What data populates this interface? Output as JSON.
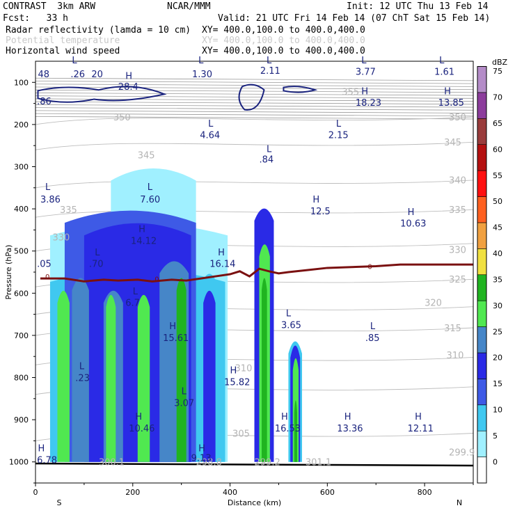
{
  "header": {
    "model": "CONTRAST  3km ARW",
    "org": "NCAR/MMM",
    "init": "Init: 12 UTC Thu 13 Feb 14",
    "fcst": "Fcst:   33 h",
    "valid": "Valid: 21 UTC Fri 14 Feb 14 (07 ChT Sat 15 Feb 14)",
    "fields": [
      {
        "name": "Radar reflectivity (lamda = 10 cm)",
        "xy": "XY= 400.0,100.0 to 400.0,400.0",
        "faded": false
      },
      {
        "name": "Potential temperature",
        "xy": "XY= 400.0,100.0 to 400.0,400.0",
        "faded": true
      },
      {
        "name": "Horizontal wind speed",
        "xy": "XY= 400.0,100.0 to 400.0,400.0",
        "faded": false
      }
    ]
  },
  "chart_data": {
    "type": "cross-section",
    "title": "Radar reflectivity, potential temperature and horizontal wind speed cross-section",
    "xlabel": "Distance (km)",
    "ylabel": "Pressure (hPa)",
    "xlim": [
      0,
      900
    ],
    "ylim": [
      1050,
      50
    ],
    "x_ticks": [
      "0",
      "200",
      "400",
      "600",
      "800"
    ],
    "x_tick_values": [
      0,
      200,
      400,
      600,
      800
    ],
    "y_ticks": [
      "100",
      "200",
      "300",
      "400",
      "500",
      "600",
      "700",
      "800",
      "900",
      "1000"
    ],
    "y_tick_values": [
      100,
      200,
      300,
      400,
      500,
      600,
      700,
      800,
      900,
      1000
    ],
    "x_end_labels": {
      "left": "S",
      "right": "N"
    },
    "colorbar": {
      "unit": "dBZ",
      "levels": [
        "0",
        "5",
        "10",
        "15",
        "20",
        "25",
        "30",
        "35",
        "40",
        "45",
        "50",
        "55",
        "60",
        "65",
        "70",
        "75"
      ],
      "colors": [
        "#ffffff",
        "#a0f0ff",
        "#40c8f0",
        "#3e5ae6",
        "#2a2ae6",
        "#4686c8",
        "#50e850",
        "#20b420",
        "#f0e040",
        "#f0a040",
        "#ff6020",
        "#ff1010",
        "#b41010",
        "#9a3c3c",
        "#8c3c9c",
        "#b48cc8"
      ]
    },
    "theta_labels": [
      {
        "text": "355",
        "x": 630,
        "p": 130
      },
      {
        "text": "350",
        "x": 160,
        "p": 190
      },
      {
        "text": "350",
        "x": 850,
        "p": 190
      },
      {
        "text": "345",
        "x": 210,
        "p": 280
      },
      {
        "text": "345",
        "x": 840,
        "p": 250
      },
      {
        "text": "340",
        "x": 850,
        "p": 340
      },
      {
        "text": "335",
        "x": 50,
        "p": 410
      },
      {
        "text": "335",
        "x": 850,
        "p": 410
      },
      {
        "text": "330",
        "x": 35,
        "p": 475
      },
      {
        "text": "330",
        "x": 850,
        "p": 505
      },
      {
        "text": "325",
        "x": 850,
        "p": 575
      },
      {
        "text": "320",
        "x": 800,
        "p": 630
      },
      {
        "text": "315",
        "x": 840,
        "p": 690
      },
      {
        "text": "310",
        "x": 845,
        "p": 755
      },
      {
        "text": "310",
        "x": 410,
        "p": 785
      },
      {
        "text": "305",
        "x": 405,
        "p": 940
      },
      {
        "text": "299.9",
        "x": 850,
        "p": 985
      }
    ],
    "theta_surface_labels": [
      "300.1",
      "298.8",
      "299.2",
      "301.1"
    ],
    "wind_labels": [
      {
        "text": "L",
        "x": 75,
        "p": 55
      },
      {
        "text": "48",
        "x": 5,
        "p": 88
      },
      {
        "text": ".26",
        "x": 72,
        "p": 88
      },
      {
        "text": "20",
        "x": 115,
        "p": 88
      },
      {
        "text": "H",
        "x": 185,
        "p": 92
      },
      {
        "text": "28.4",
        "x": 170,
        "p": 118
      },
      {
        "text": "L",
        "x": 335,
        "p": 55
      },
      {
        "text": "1.30",
        "x": 322,
        "p": 88
      },
      {
        "text": "L",
        "x": 475,
        "p": 55
      },
      {
        "text": "2.11",
        "x": 462,
        "p": 80
      },
      {
        "text": "L",
        "x": 670,
        "p": 55
      },
      {
        "text": "3.77",
        "x": 658,
        "p": 82
      },
      {
        "text": "L",
        "x": 830,
        "p": 55
      },
      {
        "text": "1.61",
        "x": 820,
        "p": 82
      },
      {
        "text": ".86",
        "x": 3,
        "p": 152
      },
      {
        "text": "H",
        "x": 670,
        "p": 128
      },
      {
        "text": "18.23",
        "x": 658,
        "p": 156
      },
      {
        "text": "H",
        "x": 840,
        "p": 128
      },
      {
        "text": "13.85",
        "x": 828,
        "p": 156
      },
      {
        "text": "L",
        "x": 355,
        "p": 205
      },
      {
        "text": "4.64",
        "x": 338,
        "p": 232
      },
      {
        "text": "L",
        "x": 618,
        "p": 205
      },
      {
        "text": "2.15",
        "x": 602,
        "p": 232
      },
      {
        "text": "L",
        "x": 475,
        "p": 265
      },
      {
        "text": ".84",
        "x": 460,
        "p": 290
      },
      {
        "text": "L",
        "x": 20,
        "p": 355
      },
      {
        "text": "3.86",
        "x": 10,
        "p": 385
      },
      {
        "text": "L",
        "x": 230,
        "p": 355
      },
      {
        "text": "7.60",
        "x": 215,
        "p": 385
      },
      {
        "text": "H",
        "x": 570,
        "p": 385
      },
      {
        "text": "12.5",
        "x": 565,
        "p": 413
      },
      {
        "text": "H",
        "x": 765,
        "p": 415
      },
      {
        "text": "10.63",
        "x": 750,
        "p": 442
      },
      {
        "text": "H",
        "x": 212,
        "p": 455
      },
      {
        "text": "14.12",
        "x": 196,
        "p": 483
      },
      {
        "text": "L",
        "x": 122,
        "p": 510
      },
      {
        "text": ".70",
        "x": 110,
        "p": 538
      },
      {
        "text": ".05",
        "x": 3,
        "p": 538
      },
      {
        "text": "H",
        "x": 375,
        "p": 510
      },
      {
        "text": "16.14",
        "x": 358,
        "p": 538
      },
      {
        "text": "L",
        "x": 200,
        "p": 603
      },
      {
        "text": "6.7",
        "x": 185,
        "p": 630
      },
      {
        "text": "L",
        "x": 515,
        "p": 655
      },
      {
        "text": "3.65",
        "x": 505,
        "p": 683
      },
      {
        "text": "H",
        "x": 275,
        "p": 685
      },
      {
        "text": "15.61",
        "x": 262,
        "p": 713
      },
      {
        "text": "L",
        "x": 688,
        "p": 685
      },
      {
        "text": ".85",
        "x": 678,
        "p": 713
      },
      {
        "text": "L",
        "x": 90,
        "p": 780
      },
      {
        "text": ".23",
        "x": 82,
        "p": 808
      },
      {
        "text": "H",
        "x": 400,
        "p": 790
      },
      {
        "text": "15.82",
        "x": 388,
        "p": 818
      },
      {
        "text": "L",
        "x": 300,
        "p": 840
      },
      {
        "text": "3.07",
        "x": 285,
        "p": 868
      },
      {
        "text": "H",
        "x": 205,
        "p": 900
      },
      {
        "text": "10.46",
        "x": 192,
        "p": 928
      },
      {
        "text": "H",
        "x": 505,
        "p": 900
      },
      {
        "text": "16.53",
        "x": 492,
        "p": 928
      },
      {
        "text": "H",
        "x": 635,
        "p": 900
      },
      {
        "text": "13.36",
        "x": 620,
        "p": 928
      },
      {
        "text": "H",
        "x": 780,
        "p": 900
      },
      {
        "text": "12.11",
        "x": 765,
        "p": 928
      },
      {
        "text": "H",
        "x": 5,
        "p": 975
      },
      {
        "text": "6.78",
        "x": 3,
        "p": 1003
      },
      {
        "text": "H",
        "x": 335,
        "p": 975
      },
      {
        "text": "9.13",
        "x": 320,
        "p": 998
      }
    ],
    "zero_isotherm_label": "0",
    "freezing_level_p": [
      [
        10,
        565
      ],
      [
        60,
        565
      ],
      [
        100,
        572
      ],
      [
        140,
        568
      ],
      [
        170,
        570
      ],
      [
        210,
        568
      ],
      [
        240,
        572
      ],
      [
        280,
        568
      ],
      [
        310,
        570
      ],
      [
        340,
        565
      ],
      [
        370,
        560
      ],
      [
        400,
        555
      ],
      [
        420,
        548
      ],
      [
        440,
        560
      ],
      [
        460,
        542
      ],
      [
        480,
        548
      ],
      [
        500,
        553
      ],
      [
        520,
        550
      ],
      [
        560,
        545
      ],
      [
        600,
        540
      ],
      [
        650,
        538
      ],
      [
        700,
        536
      ],
      [
        750,
        532
      ],
      [
        800,
        532
      ],
      [
        900,
        532
      ]
    ],
    "reflectivity_columns": [
      {
        "x0": 30,
        "x1": 395,
        "p_top": 430,
        "dbz": 5
      },
      {
        "x0": 155,
        "x1": 330,
        "p_top": 300,
        "dbz": 5
      },
      {
        "x0": 30,
        "x1": 390,
        "p_top": 540,
        "dbz": 10
      },
      {
        "x0": 60,
        "x1": 330,
        "p_top": 400,
        "dbz": 15
      },
      {
        "x0": 100,
        "x1": 320,
        "p_top": 430,
        "dbz": 20
      },
      {
        "x0": 75,
        "x1": 110,
        "p_top": 560,
        "dbz": 25
      },
      {
        "x0": 140,
        "x1": 180,
        "p_top": 590,
        "dbz": 25
      },
      {
        "x0": 255,
        "x1": 315,
        "p_top": 520,
        "dbz": 25
      },
      {
        "x0": 45,
        "x1": 70,
        "p_top": 590,
        "dbz": 30
      },
      {
        "x0": 145,
        "x1": 165,
        "p_top": 600,
        "dbz": 30
      },
      {
        "x0": 210,
        "x1": 235,
        "p_top": 600,
        "dbz": 30
      },
      {
        "x0": 290,
        "x1": 310,
        "p_top": 560,
        "dbz": 35
      },
      {
        "x0": 340,
        "x1": 375,
        "p_top": 550,
        "dbz": 10
      },
      {
        "x0": 345,
        "x1": 370,
        "p_top": 590,
        "dbz": 20
      },
      {
        "x0": 450,
        "x1": 490,
        "p_top": 395,
        "dbz": 20
      },
      {
        "x0": 460,
        "x1": 482,
        "p_top": 480,
        "dbz": 30
      },
      {
        "x0": 465,
        "x1": 476,
        "p_top": 560,
        "dbz": 35
      },
      {
        "x0": 520,
        "x1": 548,
        "p_top": 710,
        "dbz": 10
      },
      {
        "x0": 524,
        "x1": 544,
        "p_top": 720,
        "dbz": 20
      },
      {
        "x0": 529,
        "x1": 541,
        "p_top": 750,
        "dbz": 30
      },
      {
        "x0": 532,
        "x1": 538,
        "p_top": 850,
        "dbz": 35
      }
    ]
  }
}
